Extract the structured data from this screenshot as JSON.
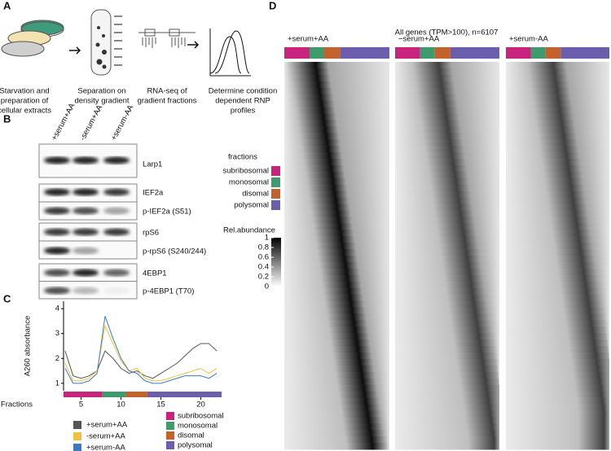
{
  "panels": {
    "A": {
      "label": "A",
      "steps": [
        [
          "Starvation and",
          "preparation of",
          "cellular extracts"
        ],
        [
          "Separation on",
          "density gradient"
        ],
        [
          "RNA-seq of",
          "gradient fractions"
        ],
        [
          "Determine condition",
          "dependent RNP",
          "profiles"
        ]
      ]
    },
    "B": {
      "label": "B",
      "conditions": [
        "+serum+AA",
        "-serum+AA",
        "+serum-AA"
      ],
      "blots": [
        "Larp1",
        "IEF2a",
        "p-IEF2a (S51)",
        "rpS6",
        "p-rpS6 (S240/244)",
        "4EBP1",
        "p-4EBP1 (T70)"
      ]
    },
    "C": {
      "label": "C"
    },
    "D": {
      "label": "D",
      "title": "All genes (TPM>100), n=6107",
      "conditions": [
        "+serum+AA",
        "−serum+AA",
        "+serum-AA"
      ],
      "fractions_title": "fractions",
      "colorbar_title": "Rel.abundance",
      "colorbar_ticks": [
        1,
        0.8,
        0.6,
        0.4,
        0.2,
        0
      ]
    }
  },
  "chart_data": {
    "type": "line",
    "x_label": "Fractions",
    "y_label": "A260 absorbance",
    "x": [
      3,
      4,
      5,
      6,
      7,
      8,
      9,
      10,
      11,
      12,
      13,
      14,
      15,
      16,
      17,
      18,
      19,
      20,
      21,
      22
    ],
    "series": [
      {
        "name": "+serum+AA",
        "color": "#555555",
        "values": [
          2.3,
          1.3,
          1.2,
          1.3,
          1.5,
          2.3,
          2.0,
          1.6,
          1.4,
          1.5,
          1.3,
          1.2,
          1.4,
          1.6,
          1.8,
          2.1,
          2.4,
          2.6,
          2.6,
          2.3
        ]
      },
      {
        "name": "-serum+AA",
        "color": "#f0c040",
        "values": [
          1.8,
          1.1,
          1.1,
          1.2,
          1.5,
          3.3,
          2.6,
          1.9,
          1.5,
          1.6,
          1.2,
          1.1,
          1.1,
          1.2,
          1.3,
          1.4,
          1.5,
          1.6,
          1.4,
          1.6
        ]
      },
      {
        "name": "+serum-AA",
        "color": "#3b7bbf",
        "values": [
          1.6,
          1.0,
          1.0,
          1.1,
          1.4,
          3.7,
          2.8,
          2.0,
          1.5,
          1.4,
          1.1,
          1.0,
          1.0,
          1.1,
          1.2,
          1.3,
          1.3,
          1.3,
          1.2,
          1.4
        ]
      }
    ],
    "xlim": [
      2.8,
      22.6
    ],
    "ylim": [
      0.7,
      4.3
    ],
    "xticks": [
      5,
      10,
      15,
      20
    ],
    "yticks": [
      1,
      2,
      3,
      4
    ],
    "fractions": [
      {
        "name": "subribosomal",
        "color": "#c8247e",
        "start": 2.8,
        "end": 7.6
      },
      {
        "name": "monosomal",
        "color": "#3f9a6e",
        "start": 7.6,
        "end": 10.6
      },
      {
        "name": "disomal",
        "color": "#c4622d",
        "start": 10.6,
        "end": 13.3
      },
      {
        "name": "polysomal",
        "color": "#6b5fad",
        "start": 13.3,
        "end": 22.6
      }
    ]
  }
}
